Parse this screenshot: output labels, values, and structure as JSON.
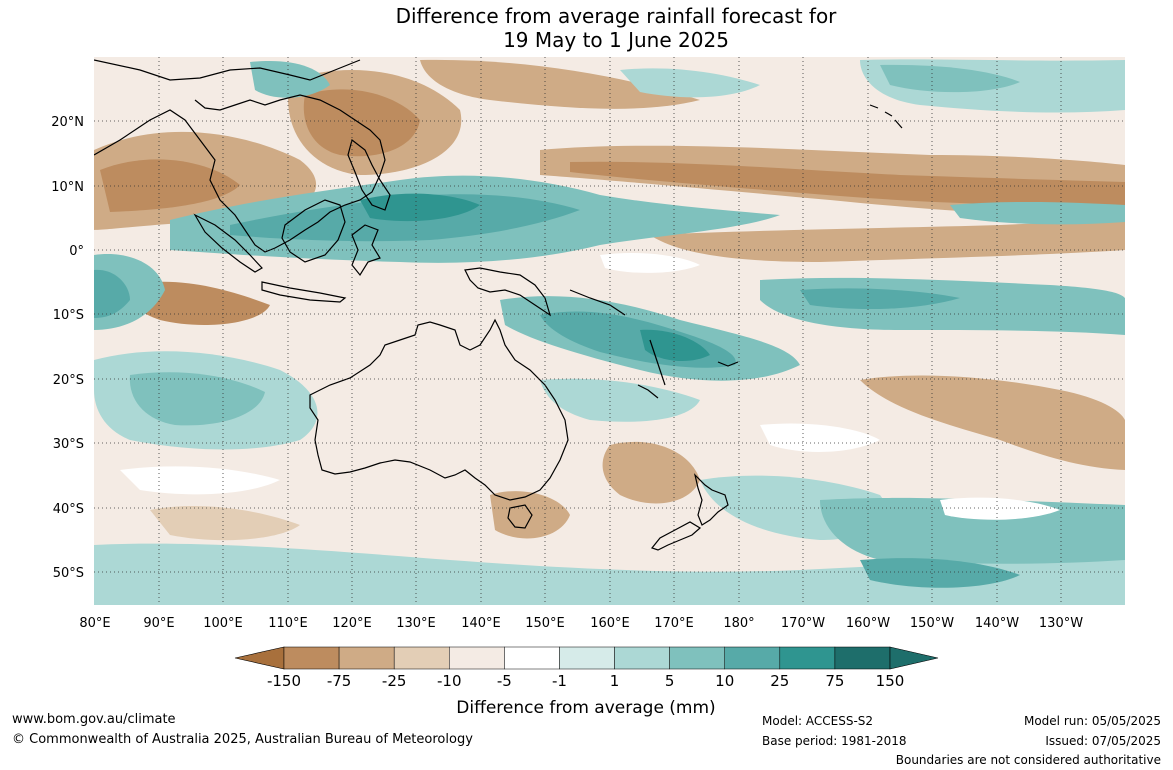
{
  "title": {
    "line1": "Difference from average rainfall forecast for",
    "line2": "19 May to 1 June 2025"
  },
  "map": {
    "lat_labels": [
      "20°N",
      "10°N",
      "0°",
      "10°S",
      "20°S",
      "30°S",
      "40°S",
      "50°S"
    ],
    "lon_labels": [
      "80°E",
      "90°E",
      "100°E",
      "110°E",
      "120°E",
      "130°E",
      "140°E",
      "150°E",
      "160°E",
      "170°E",
      "180°",
      "170°W",
      "160°W",
      "150°W",
      "140°W",
      "130°W"
    ],
    "extent": {
      "lon_min": 80,
      "lon_max": 240,
      "lat_min": -55,
      "lat_max": 30
    }
  },
  "colorbar": {
    "ticks": [
      "-150",
      "-75",
      "-25",
      "-10",
      "-5",
      "-1",
      "1",
      "5",
      "10",
      "25",
      "75",
      "150"
    ],
    "colors": [
      "#a8703c",
      "#bd8c5f",
      "#cfab86",
      "#e3ceb6",
      "#f4ebe4",
      "#ffffff",
      "#d6ebe9",
      "#acd8d5",
      "#7fc1bd",
      "#57aaa8",
      "#2f9590",
      "#1e6e6b"
    ],
    "label": "Difference from average (mm)"
  },
  "footer": {
    "website": "www.bom.gov.au/climate",
    "copyright": "© Commonwealth of Australia 2025, Australian Bureau of Meteorology",
    "model": "Model: ACCESS-S2",
    "base_period": "Base period: 1981-2018",
    "model_run": "Model run: 05/05/2025",
    "issued": "Issued: 07/05/2025",
    "disclaimer": "Boundaries are not considered authoritative"
  }
}
